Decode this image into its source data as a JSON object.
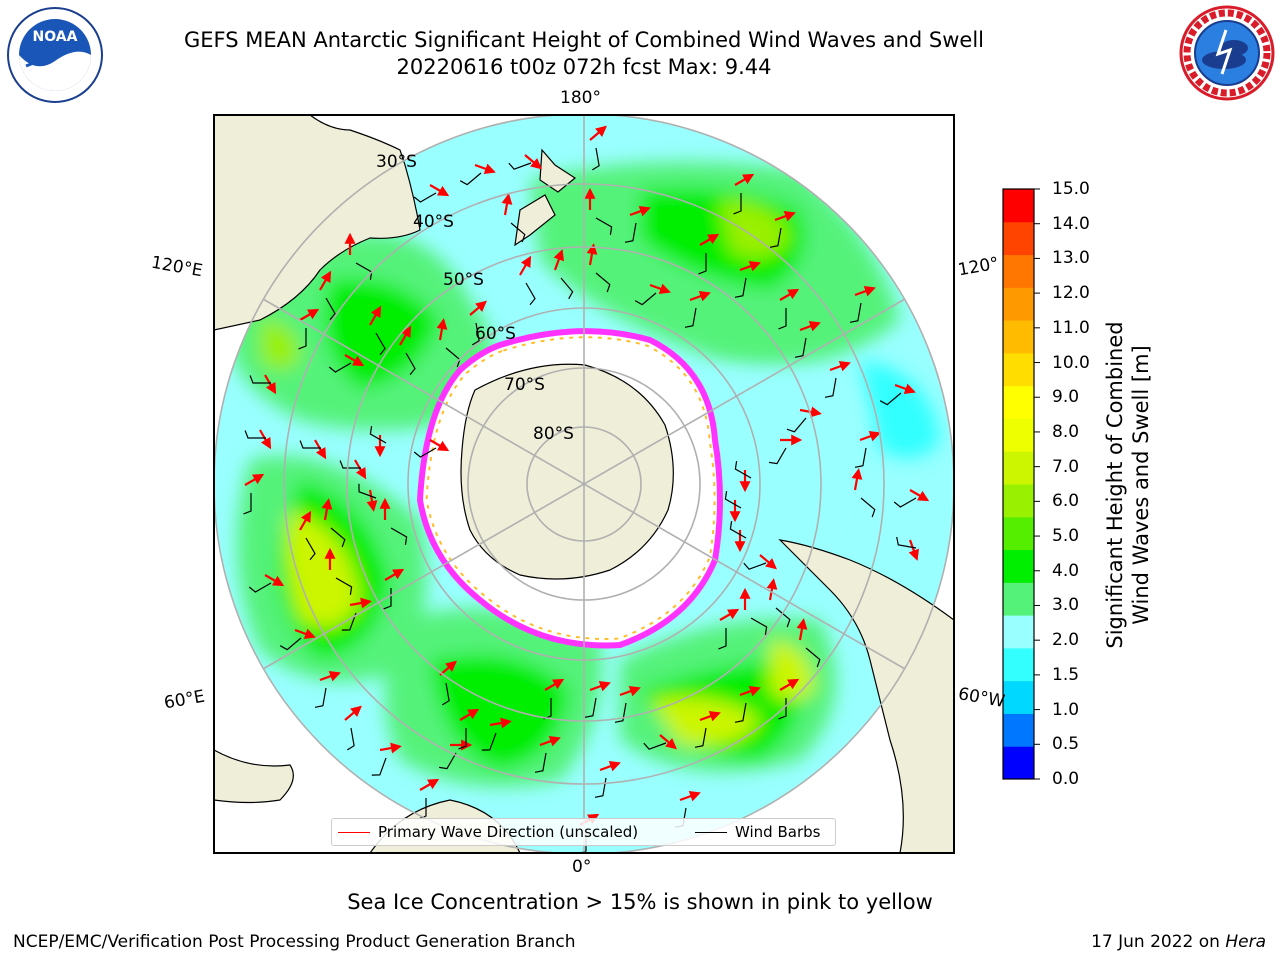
{
  "header": {
    "title_line1": "GEFS MEAN Antarctic Significant Height of Combined Wind Waves and Swell",
    "title_line2": "20220616 t00z 072h fcst   Max: 9.44"
  },
  "logos": {
    "left": {
      "text": "NOAA",
      "icon": "noaa-logo-icon"
    },
    "right": {
      "icon": "national-weather-service-logo-icon"
    }
  },
  "map": {
    "projection": "south-polar-stereographic",
    "meridian_labels": {
      "top": "180°",
      "bottom": "0°",
      "left_upper": "120°E",
      "left_lower": "60°E",
      "right_upper": "120°",
      "right_lower": "60°W"
    },
    "latitude_labels": [
      "30°S",
      "40°S",
      "50°S",
      "60°S",
      "70°S",
      "80°S"
    ],
    "colors": {
      "land": "#efeed9",
      "ice_edge": "#ff33ff",
      "ice_inner": "#ffbb22",
      "wave_arrow": "#ff0000",
      "wind_barb": "#000000"
    }
  },
  "legend": {
    "primary_wave": "Primary Wave Direction (unscaled)",
    "wind_barbs": "Wind Barbs"
  },
  "colorbar": {
    "label_line1": "Significant Height of Combined",
    "label_line2": "Wind Waves and Swell [m]",
    "ticks": [
      "15.0",
      "14.0",
      "13.0",
      "12.0",
      "11.0",
      "10.0",
      "9.0",
      "8.0",
      "7.0",
      "6.0",
      "5.0",
      "4.0",
      "3.0",
      "2.0",
      "1.5",
      "1.0",
      "0.5",
      "0.0"
    ],
    "colors": [
      "#0000ff",
      "#0077ff",
      "#00d8ff",
      "#33ffff",
      "#99ffff",
      "#55f27a",
      "#00ee00",
      "#55ee00",
      "#99f000",
      "#ccf500",
      "#eeff00",
      "#ffff00",
      "#ffdd00",
      "#ffbb00",
      "#ff9900",
      "#ff7700",
      "#ff4400",
      "#ff0000"
    ]
  },
  "subtitle": "Sea Ice Concentration > 15% is shown in pink to yellow",
  "footer": {
    "left": "NCEP/EMC/Verification Post Processing Product Generation Branch",
    "right_date": "17 Jun 2022 on ",
    "right_host": "Hera"
  }
}
